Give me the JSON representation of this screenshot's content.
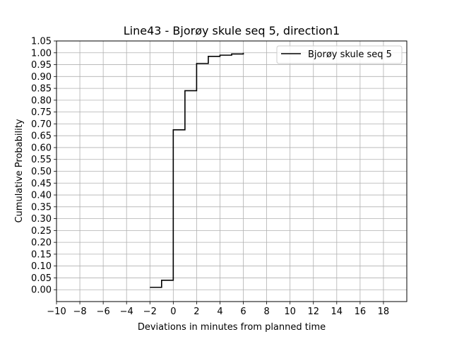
{
  "chart_data": {
    "type": "line",
    "drawstyle": "steps-post",
    "title": "Line43 - Bjorøy skule seq 5, direction1",
    "xlabel": "Deviations in minutes from planned time",
    "ylabel": "Cumulative Probability",
    "xlim": [
      -10,
      20
    ],
    "ylim": [
      -0.05,
      1.05
    ],
    "x_ticks": [
      -10,
      -8,
      -6,
      -4,
      -2,
      0,
      2,
      4,
      6,
      8,
      10,
      12,
      14,
      16,
      18
    ],
    "y_ticks": [
      0.0,
      0.05,
      0.1,
      0.15,
      0.2,
      0.25,
      0.3,
      0.35,
      0.4,
      0.45,
      0.5,
      0.55,
      0.6,
      0.65,
      0.7,
      0.75,
      0.8,
      0.85,
      0.9,
      0.95,
      1.0,
      1.05
    ],
    "x_tick_labels": [
      "−10",
      "−8",
      "−6",
      "−4",
      "−2",
      "0",
      "2",
      "4",
      "6",
      "8",
      "10",
      "12",
      "14",
      "16",
      "18"
    ],
    "y_tick_labels": [
      "0.00",
      "0.05",
      "0.10",
      "0.15",
      "0.20",
      "0.25",
      "0.30",
      "0.35",
      "0.40",
      "0.45",
      "0.50",
      "0.55",
      "0.60",
      "0.65",
      "0.70",
      "0.75",
      "0.80",
      "0.85",
      "0.90",
      "0.95",
      "1.00",
      "1.05"
    ],
    "grid": true,
    "legend_position": "top-right",
    "series": [
      {
        "name": "Bjorøy skule seq 5",
        "color": "#000000",
        "x": [
          -2,
          -1,
          0,
          1,
          2,
          3,
          4,
          5,
          6
        ],
        "y": [
          0.01,
          0.04,
          0.675,
          0.84,
          0.955,
          0.985,
          0.99,
          0.995,
          1.0
        ]
      }
    ]
  }
}
